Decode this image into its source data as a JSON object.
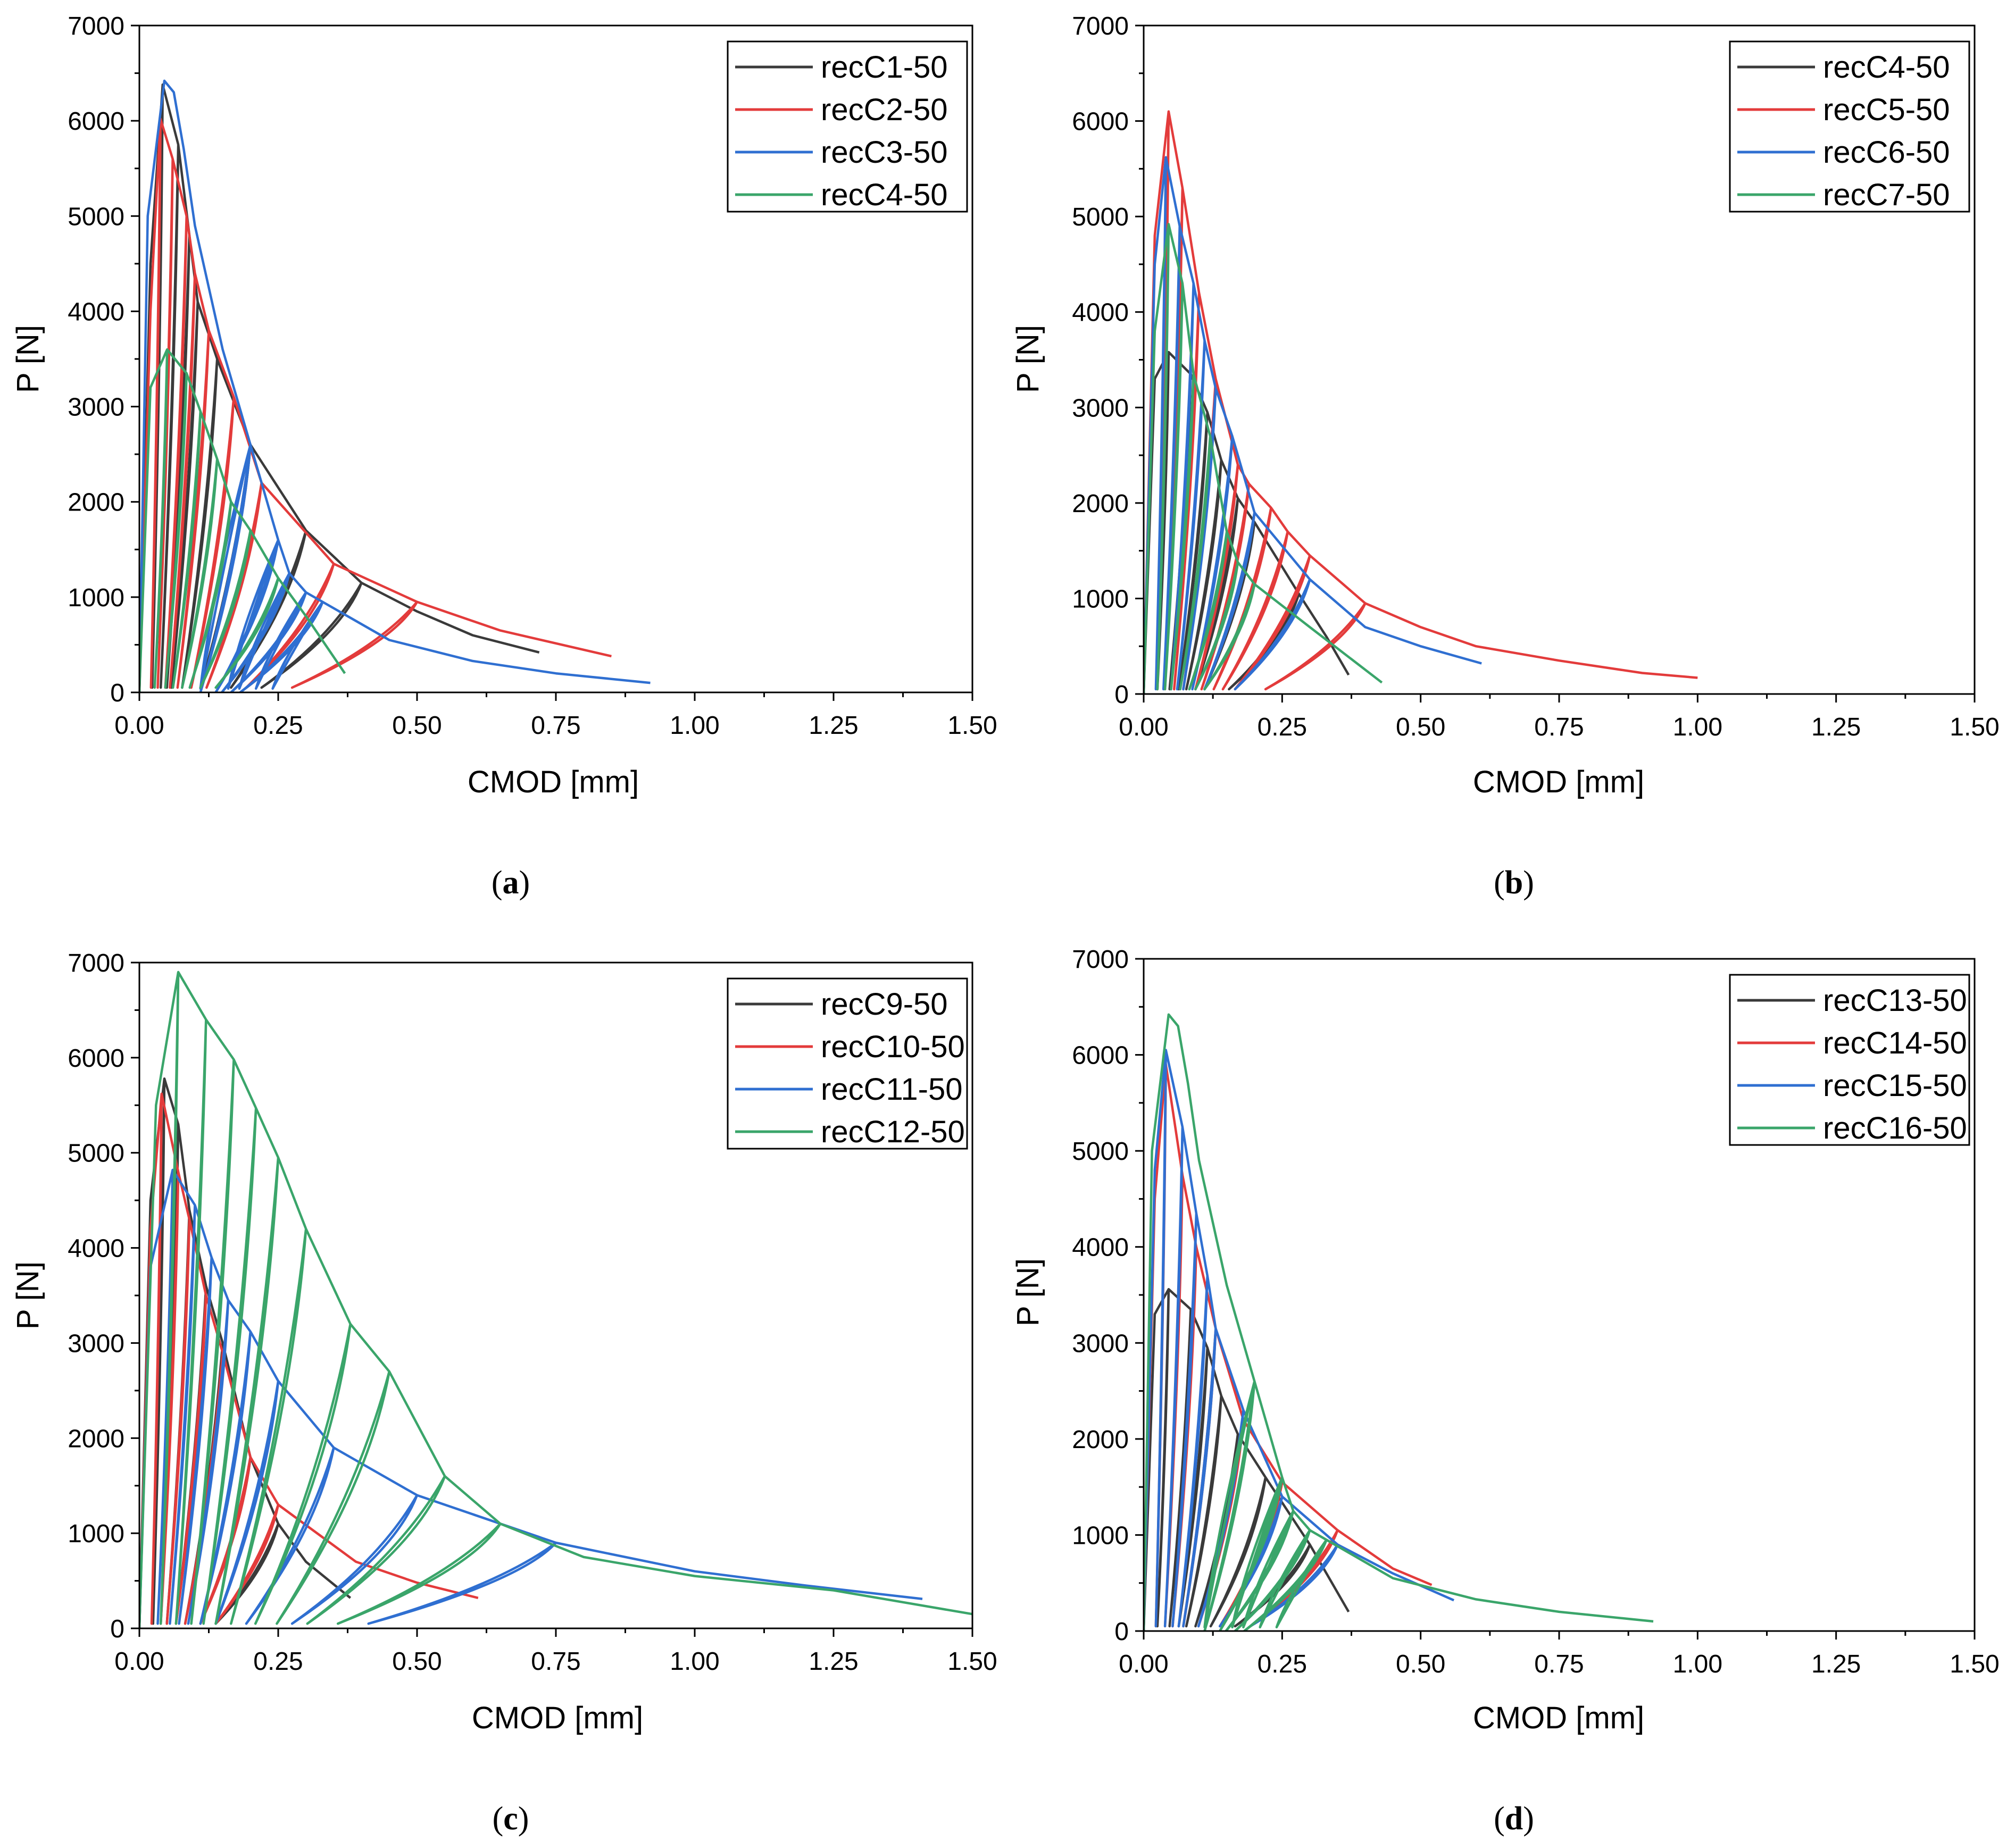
{
  "colors": {
    "black": "#3a3a3a",
    "red": "#e33b3b",
    "blue": "#2f6fd1",
    "green": "#3aa56a"
  },
  "chart_data": [
    {
      "type": "line",
      "caption_letter": "a",
      "xlabel": "CMOD [mm]",
      "ylabel": "P [N]",
      "xlim": [
        0,
        1.5
      ],
      "ylim": [
        0,
        7000
      ],
      "xticks": [
        "0.00",
        "0.25",
        "0.50",
        "0.75",
        "1.00",
        "1.25",
        "1.50"
      ],
      "yticks": [
        "0",
        "1000",
        "2000",
        "3000",
        "4000",
        "5000",
        "6000",
        "7000"
      ],
      "legend_position": "top-right",
      "series": [
        {
          "name": "recC1-50",
          "color": "black",
          "envelope": [
            [
              0,
              0
            ],
            [
              0.02,
              4500
            ],
            [
              0.042,
              6380
            ],
            [
              0.07,
              5750
            ],
            [
              0.09,
              4800
            ],
            [
              0.105,
              4100
            ],
            [
              0.14,
              3500
            ],
            [
              0.2,
              2600
            ],
            [
              0.3,
              1700
            ],
            [
              0.4,
              1150
            ],
            [
              0.5,
              850
            ],
            [
              0.6,
              600
            ],
            [
              0.72,
              420
            ]
          ],
          "end": [
            0.72,
            420
          ],
          "baseline": 50
        },
        {
          "name": "recC2-50",
          "color": "red",
          "envelope": [
            [
              0,
              0
            ],
            [
              0.02,
              4000
            ],
            [
              0.038,
              6020
            ],
            [
              0.06,
              5600
            ],
            [
              0.085,
              5000
            ],
            [
              0.1,
              4400
            ],
            [
              0.125,
              3800
            ],
            [
              0.17,
              3100
            ],
            [
              0.22,
              2200
            ],
            [
              0.35,
              1350
            ],
            [
              0.5,
              950
            ],
            [
              0.65,
              650
            ],
            [
              0.85,
              380
            ]
          ],
          "end": [
            0.85,
            380
          ],
          "baseline": 50
        },
        {
          "name": "recC3-50",
          "color": "blue",
          "envelope": [
            [
              0,
              0
            ],
            [
              0.015,
              5000
            ],
            [
              0.045,
              6420
            ],
            [
              0.062,
              6300
            ],
            [
              0.08,
              5700
            ],
            [
              0.1,
              4900
            ],
            [
              0.15,
              3600
            ],
            [
              0.2,
              2600
            ],
            [
              0.25,
              1600
            ],
            [
              0.27,
              1250
            ],
            [
              0.3,
              1050
            ],
            [
              0.33,
              950
            ],
            [
              0.45,
              550
            ],
            [
              0.6,
              330
            ],
            [
              0.75,
              200
            ],
            [
              0.92,
              100
            ]
          ],
          "end": [
            0.92,
            100
          ],
          "baseline": 0,
          "unload_from": 0.18
        },
        {
          "name": "recC4-50",
          "color": "green",
          "envelope": [
            [
              0,
              0
            ],
            [
              0.02,
              3200
            ],
            [
              0.05,
              3600
            ],
            [
              0.085,
              3350
            ],
            [
              0.11,
              2950
            ],
            [
              0.14,
              2450
            ],
            [
              0.165,
              2000
            ],
            [
              0.2,
              1700
            ],
            [
              0.25,
              1200
            ],
            [
              0.3,
              800
            ],
            [
              0.37,
              200
            ]
          ],
          "end": [
            0.37,
            200
          ],
          "baseline": 50
        }
      ]
    },
    {
      "type": "line",
      "caption_letter": "b",
      "xlabel": "CMOD [mm]",
      "ylabel": "P [N]",
      "xlim": [
        0,
        1.5
      ],
      "ylim": [
        0,
        7000
      ],
      "xticks": [
        "0.00",
        "0.25",
        "0.50",
        "0.75",
        "1.00",
        "1.25",
        "1.50"
      ],
      "yticks": [
        "0",
        "1000",
        "2000",
        "3000",
        "4000",
        "5000",
        "6000",
        "7000"
      ],
      "legend_position": "top-right",
      "series": [
        {
          "name": "recC4-50",
          "color": "black",
          "envelope": [
            [
              0,
              0
            ],
            [
              0.02,
              3300
            ],
            [
              0.045,
              3580
            ],
            [
              0.085,
              3350
            ],
            [
              0.115,
              2950
            ],
            [
              0.14,
              2450
            ],
            [
              0.17,
              2050
            ],
            [
              0.2,
              1800
            ],
            [
              0.28,
              1050
            ],
            [
              0.33,
              600
            ],
            [
              0.37,
              200
            ]
          ],
          "end": [
            0.37,
            200
          ],
          "baseline": 50
        },
        {
          "name": "recC5-50",
          "color": "red",
          "envelope": [
            [
              0,
              0
            ],
            [
              0.02,
              4800
            ],
            [
              0.045,
              6100
            ],
            [
              0.07,
              5300
            ],
            [
              0.1,
              4200
            ],
            [
              0.13,
              3300
            ],
            [
              0.17,
              2400
            ],
            [
              0.19,
              2200
            ],
            [
              0.23,
              1950
            ],
            [
              0.26,
              1700
            ],
            [
              0.3,
              1450
            ],
            [
              0.4,
              950
            ],
            [
              0.5,
              700
            ],
            [
              0.6,
              500
            ],
            [
              0.75,
              350
            ],
            [
              0.9,
              220
            ],
            [
              1.0,
              170
            ]
          ],
          "end": [
            1.0,
            170
          ],
          "baseline": 50
        },
        {
          "name": "recC6-50",
          "color": "blue",
          "envelope": [
            [
              0,
              0
            ],
            [
              0.02,
              4500
            ],
            [
              0.04,
              5620
            ],
            [
              0.065,
              4900
            ],
            [
              0.09,
              4300
            ],
            [
              0.11,
              3700
            ],
            [
              0.13,
              3200
            ],
            [
              0.16,
              2700
            ],
            [
              0.2,
              1900
            ],
            [
              0.3,
              1200
            ],
            [
              0.4,
              700
            ],
            [
              0.5,
              500
            ],
            [
              0.61,
              320
            ]
          ],
          "end": [
            0.61,
            320
          ],
          "baseline": 50
        },
        {
          "name": "recC7-50",
          "color": "green",
          "envelope": [
            [
              0,
              0
            ],
            [
              0.02,
              3800
            ],
            [
              0.045,
              4920
            ],
            [
              0.07,
              4300
            ],
            [
              0.09,
              3350
            ],
            [
              0.12,
              2700
            ],
            [
              0.15,
              1700
            ],
            [
              0.17,
              1380
            ],
            [
              0.2,
              1150
            ],
            [
              0.3,
              700
            ],
            [
              0.43,
              120
            ]
          ],
          "end": [
            0.43,
            120
          ],
          "baseline": 50
        }
      ]
    },
    {
      "type": "line",
      "caption_letter": "c",
      "xlabel": "CMOD [mm]",
      "ylabel": "P [N]",
      "xlim": [
        0,
        1.5
      ],
      "ylim": [
        0,
        7000
      ],
      "xticks": [
        "0.00",
        "0.25",
        "0.50",
        "0.75",
        "1.00",
        "1.25",
        "1.50"
      ],
      "yticks": [
        "0",
        "1000",
        "2000",
        "3000",
        "4000",
        "5000",
        "6000",
        "7000"
      ],
      "legend_position": "top-right",
      "series": [
        {
          "name": "recC9-50",
          "color": "black",
          "envelope": [
            [
              0,
              0
            ],
            [
              0.02,
              4500
            ],
            [
              0.045,
              5780
            ],
            [
              0.07,
              5300
            ],
            [
              0.09,
              4400
            ],
            [
              0.12,
              3600
            ],
            [
              0.15,
              3000
            ],
            [
              0.2,
              1800
            ],
            [
              0.25,
              1100
            ],
            [
              0.3,
              700
            ],
            [
              0.38,
              320
            ]
          ],
          "end": [
            0.38,
            320
          ],
          "baseline": 50
        },
        {
          "name": "recC10-50",
          "color": "red",
          "envelope": [
            [
              0,
              0
            ],
            [
              0.02,
              4200
            ],
            [
              0.04,
              5620
            ],
            [
              0.07,
              4800
            ],
            [
              0.09,
              4300
            ],
            [
              0.12,
              3500
            ],
            [
              0.15,
              2900
            ],
            [
              0.2,
              1800
            ],
            [
              0.25,
              1300
            ],
            [
              0.39,
              700
            ],
            [
              0.5,
              480
            ],
            [
              0.61,
              320
            ]
          ],
          "end": [
            0.61,
            320
          ],
          "baseline": 50
        },
        {
          "name": "recC11-50",
          "color": "blue",
          "envelope": [
            [
              0,
              0
            ],
            [
              0.02,
              3800
            ],
            [
              0.06,
              4820
            ],
            [
              0.1,
              4450
            ],
            [
              0.13,
              3900
            ],
            [
              0.16,
              3450
            ],
            [
              0.2,
              3120
            ],
            [
              0.25,
              2600
            ],
            [
              0.35,
              1900
            ],
            [
              0.5,
              1400
            ],
            [
              0.75,
              900
            ],
            [
              1.0,
              600
            ],
            [
              1.2,
              450
            ],
            [
              1.41,
              310
            ]
          ],
          "end": [
            1.41,
            310
          ],
          "baseline": 50
        },
        {
          "name": "recC12-50",
          "color": "green",
          "envelope": [
            [
              0,
              0
            ],
            [
              0.03,
              5500
            ],
            [
              0.07,
              6900
            ],
            [
              0.12,
              6400
            ],
            [
              0.17,
              5980
            ],
            [
              0.21,
              5470
            ],
            [
              0.25,
              4950
            ],
            [
              0.3,
              4200
            ],
            [
              0.38,
              3200
            ],
            [
              0.45,
              2700
            ],
            [
              0.55,
              1600
            ],
            [
              0.65,
              1100
            ],
            [
              0.8,
              750
            ],
            [
              1.0,
              550
            ],
            [
              1.25,
              400
            ],
            [
              1.5,
              150
            ]
          ],
          "end": [
            1.5,
            150
          ],
          "baseline": 50
        }
      ]
    },
    {
      "type": "line",
      "caption_letter": "d",
      "xlabel": "CMOD [mm]",
      "ylabel": "P [N]",
      "xlim": [
        0,
        1.5
      ],
      "ylim": [
        0,
        7000
      ],
      "xticks": [
        "0.00",
        "0.25",
        "0.50",
        "0.75",
        "1.00",
        "1.25",
        "1.50"
      ],
      "yticks": [
        "0",
        "1000",
        "2000",
        "3000",
        "4000",
        "5000",
        "6000",
        "7000"
      ],
      "legend_position": "top-right",
      "series": [
        {
          "name": "recC13-50",
          "color": "black",
          "envelope": [
            [
              0,
              0
            ],
            [
              0.02,
              3300
            ],
            [
              0.045,
              3560
            ],
            [
              0.085,
              3350
            ],
            [
              0.115,
              2950
            ],
            [
              0.14,
              2450
            ],
            [
              0.17,
              2050
            ],
            [
              0.22,
              1600
            ],
            [
              0.3,
              900
            ],
            [
              0.37,
              200
            ]
          ],
          "end": [
            0.37,
            200
          ],
          "baseline": 50
        },
        {
          "name": "recC14-50",
          "color": "red",
          "envelope": [
            [
              0,
              0
            ],
            [
              0.02,
              4500
            ],
            [
              0.04,
              5900
            ],
            [
              0.07,
              4750
            ],
            [
              0.095,
              4000
            ],
            [
              0.13,
              3150
            ],
            [
              0.18,
              2200
            ],
            [
              0.25,
              1550
            ],
            [
              0.35,
              1050
            ],
            [
              0.45,
              650
            ],
            [
              0.52,
              480
            ]
          ],
          "end": [
            0.52,
            480
          ],
          "baseline": 50
        },
        {
          "name": "recC15-50",
          "color": "blue",
          "envelope": [
            [
              0,
              0
            ],
            [
              0.02,
              4800
            ],
            [
              0.04,
              6050
            ],
            [
              0.07,
              5250
            ],
            [
              0.095,
              4350
            ],
            [
              0.115,
              3700
            ],
            [
              0.13,
              3150
            ],
            [
              0.18,
              2300
            ],
            [
              0.25,
              1400
            ],
            [
              0.35,
              900
            ],
            [
              0.45,
              600
            ],
            [
              0.56,
              320
            ]
          ],
          "end": [
            0.56,
            320
          ],
          "baseline": 50
        },
        {
          "name": "recC16-50",
          "color": "green",
          "envelope": [
            [
              0,
              0
            ],
            [
              0.015,
              5000
            ],
            [
              0.045,
              6420
            ],
            [
              0.062,
              6300
            ],
            [
              0.08,
              5700
            ],
            [
              0.1,
              4900
            ],
            [
              0.15,
              3600
            ],
            [
              0.2,
              2600
            ],
            [
              0.25,
              1600
            ],
            [
              0.27,
              1250
            ],
            [
              0.3,
              1050
            ],
            [
              0.33,
              950
            ],
            [
              0.45,
              550
            ],
            [
              0.6,
              330
            ],
            [
              0.75,
              200
            ],
            [
              0.92,
              100
            ]
          ],
          "end": [
            0.92,
            100
          ],
          "baseline": 0,
          "unload_from": 0.18
        }
      ]
    }
  ]
}
